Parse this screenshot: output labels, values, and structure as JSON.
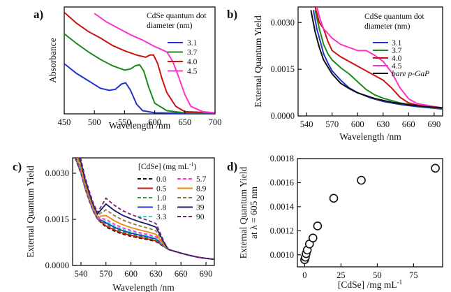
{
  "panels": [
    {
      "id": "a",
      "panel_label": "a)",
      "type": "line",
      "xlabel": "Wavelength /nm",
      "ylabel": "Absorbance",
      "xlim": [
        450,
        700
      ],
      "xticks": [
        450,
        500,
        550,
        600,
        650,
        700
      ],
      "legend_title": [
        "CdSe quantum dot",
        "diameter (nm)"
      ],
      "legend_position": "top-right",
      "series": [
        {
          "name": "3.1",
          "color": "#2233cc",
          "x": [
            450,
            470,
            490,
            510,
            525,
            535,
            545,
            552,
            560,
            570,
            580,
            600,
            650,
            700
          ],
          "y": [
            0.47,
            0.38,
            0.31,
            0.24,
            0.22,
            0.23,
            0.28,
            0.29,
            0.22,
            0.09,
            0.03,
            0.01,
            0.005,
            0.005
          ]
        },
        {
          "name": "3.7",
          "color": "#1e8a1e",
          "x": [
            450,
            470,
            490,
            510,
            530,
            550,
            560,
            568,
            575,
            582,
            590,
            600,
            620,
            650,
            700
          ],
          "y": [
            0.75,
            0.66,
            0.58,
            0.51,
            0.45,
            0.41,
            0.42,
            0.45,
            0.46,
            0.4,
            0.25,
            0.1,
            0.03,
            0.01,
            0.01
          ]
        },
        {
          "name": "4.0",
          "color": "#cc1111",
          "x": [
            450,
            470,
            490,
            510,
            530,
            550,
            570,
            585,
            592,
            598,
            605,
            612,
            620,
            635,
            650,
            700
          ],
          "y": [
            0.95,
            0.85,
            0.77,
            0.71,
            0.64,
            0.59,
            0.55,
            0.53,
            0.55,
            0.55,
            0.47,
            0.33,
            0.2,
            0.07,
            0.02,
            0.01
          ]
        },
        {
          "name": "4.5",
          "color": "#ff33cc",
          "x": [
            500,
            520,
            540,
            560,
            580,
            600,
            612,
            620,
            630,
            640,
            650,
            660,
            680,
            700
          ],
          "y": [
            0.94,
            0.86,
            0.8,
            0.74,
            0.69,
            0.63,
            0.6,
            0.58,
            0.49,
            0.34,
            0.18,
            0.07,
            0.02,
            0.01
          ]
        }
      ]
    },
    {
      "id": "b",
      "panel_label": "b)",
      "type": "line",
      "xlabel": "Wavelength /nm",
      "ylabel": "External Quantum Yield",
      "xlim": [
        530,
        700
      ],
      "ylim": [
        0,
        0.0035
      ],
      "xticks": [
        540,
        570,
        600,
        630,
        660,
        690
      ],
      "yticks": [
        0.0,
        0.0015,
        0.003
      ],
      "ytick_labels": [
        "0.0000",
        "0.0015",
        "0.0030"
      ],
      "legend_title": [
        "CdSe quantum dot",
        "diameter (nm)"
      ],
      "legend_position": "top-right",
      "series": [
        {
          "name": "3.1",
          "color": "#2233cc",
          "x": [
            548,
            552,
            556,
            560,
            565,
            570,
            580,
            590,
            600,
            615,
            630,
            650,
            670,
            690,
            700
          ],
          "y": [
            0.0034,
            0.0028,
            0.0024,
            0.002,
            0.0017,
            0.00145,
            0.00115,
            0.0009,
            0.00075,
            0.00058,
            0.00047,
            0.00037,
            0.0003,
            0.00025,
            0.00022
          ]
        },
        {
          "name": "3.7",
          "color": "#1e8a1e",
          "x": [
            550,
            555,
            560,
            565,
            570,
            580,
            590,
            600,
            610,
            620,
            630,
            650,
            670,
            690,
            700
          ],
          "y": [
            0.0034,
            0.0028,
            0.0023,
            0.002,
            0.0018,
            0.00155,
            0.00135,
            0.0011,
            0.00085,
            0.00068,
            0.00057,
            0.00042,
            0.00033,
            0.00026,
            0.00023
          ]
        },
        {
          "name": "4.0",
          "color": "#cc1111",
          "x": [
            550,
            555,
            560,
            565,
            570,
            580,
            590,
            600,
            610,
            620,
            630,
            640,
            650,
            660,
            670,
            690,
            700
          ],
          "y": [
            0.0035,
            0.003,
            0.0028,
            0.0024,
            0.0021,
            0.0019,
            0.00175,
            0.0016,
            0.00145,
            0.0013,
            0.00115,
            0.0009,
            0.0006,
            0.00042,
            0.00035,
            0.00027,
            0.00024
          ]
        },
        {
          "name": "4.5",
          "color": "#ff33cc",
          "x": [
            552,
            556,
            560,
            570,
            580,
            590,
            600,
            610,
            620,
            630,
            640,
            650,
            660,
            670,
            690,
            700
          ],
          "y": [
            0.0035,
            0.0031,
            0.0028,
            0.0025,
            0.0023,
            0.0022,
            0.0021,
            0.0021,
            0.00195,
            0.00175,
            0.0014,
            0.0009,
            0.00055,
            0.0004,
            0.0003,
            0.00026
          ]
        },
        {
          "name": "bare p-GaP",
          "name_style": "italic",
          "color": "#111111",
          "x": [
            545,
            550,
            555,
            560,
            570,
            580,
            590,
            600,
            620,
            640,
            660,
            680,
            700
          ],
          "y": [
            0.0034,
            0.0027,
            0.0022,
            0.0018,
            0.00135,
            0.00105,
            0.00088,
            0.00074,
            0.00056,
            0.00044,
            0.00036,
            0.0003,
            0.00026
          ]
        }
      ]
    },
    {
      "id": "c",
      "panel_label": "c)",
      "type": "line",
      "xlabel": "Wavelength /nm",
      "ylabel": "External Quantum Yield",
      "xlim": [
        530,
        700
      ],
      "ylim": [
        0,
        0.0035
      ],
      "xticks": [
        540,
        570,
        600,
        630,
        660,
        690
      ],
      "yticks": [
        0.0,
        0.0015,
        0.003
      ],
      "ytick_labels": [
        "0.0000",
        "0.0015",
        "0.0030"
      ],
      "legend_title": [
        "[CdSe] (mg mL",
        "-1",
        ")"
      ],
      "legend_position": "top-right",
      "series": [
        {
          "name": "0.0",
          "color": "#111111",
          "dash": "5,3",
          "y_mult": 1.0
        },
        {
          "name": "0.5",
          "color": "#dd1111",
          "dash": "",
          "y_mult": 1.03
        },
        {
          "name": "1.0",
          "color": "#22aa22",
          "dash": "5,3",
          "y_mult": 1.07
        },
        {
          "name": "1.8",
          "color": "#2233cc",
          "dash": "",
          "y_mult": 1.11
        },
        {
          "name": "3.3",
          "color": "#22dddd",
          "dash": "5,3",
          "y_mult": 1.15
        },
        {
          "name": "5.7",
          "color": "#ff33cc",
          "dash": "5,3",
          "y_mult": 1.2
        },
        {
          "name": "8.9",
          "color": "#ee8800",
          "dash": "",
          "y_mult": 1.3
        },
        {
          "name": "20",
          "color": "#887744",
          "dash": "5,3",
          "y_mult": 1.45
        },
        {
          "name": "39",
          "color": "#1a1a66",
          "dash": "",
          "y_mult": 1.6
        },
        {
          "name": "90",
          "color": "#772277",
          "dash": "5,3",
          "y_mult": 1.75
        }
      ],
      "base_curve": {
        "x": [
          533,
          540,
          545,
          550,
          555,
          560,
          570,
          580,
          590,
          600,
          610,
          620,
          630,
          640,
          645,
          650,
          660,
          670,
          680,
          690,
          700
        ],
        "y": [
          0.0035,
          0.003,
          0.0025,
          0.0021,
          0.00175,
          0.0015,
          0.00125,
          0.00112,
          0.00102,
          0.00095,
          0.00089,
          0.00084,
          0.00078,
          0.0006,
          0.00052,
          0.00048,
          0.0004,
          0.00033,
          0.00027,
          0.00023,
          0.0002
        ]
      }
    },
    {
      "id": "d",
      "panel_label": "d)",
      "type": "scatter",
      "xlabel": "[CdSe] /mg mL",
      "xlabel_sup": "-1",
      "ylabel_line1": "External Quantum Yield",
      "ylabel_line2": "at λ = 605 nm",
      "xlim": [
        -5,
        95
      ],
      "ylim": [
        0.0009,
        0.0018
      ],
      "xticks": [
        0,
        25,
        50,
        75
      ],
      "yticks": [
        0.001,
        0.0012,
        0.0014,
        0.0016,
        0.0018
      ],
      "ytick_labels": [
        "0.0010",
        "0.0012",
        "0.0014",
        "0.0016",
        "0.0018"
      ],
      "points": [
        {
          "x": 0.0,
          "y": 0.00096
        },
        {
          "x": 0.5,
          "y": 0.00098
        },
        {
          "x": 1.0,
          "y": 0.00101
        },
        {
          "x": 1.8,
          "y": 0.00104
        },
        {
          "x": 3.3,
          "y": 0.00109
        },
        {
          "x": 5.7,
          "y": 0.00114
        },
        {
          "x": 8.9,
          "y": 0.00124
        },
        {
          "x": 20,
          "y": 0.00147
        },
        {
          "x": 39,
          "y": 0.00162
        },
        {
          "x": 90,
          "y": 0.00172
        }
      ]
    }
  ],
  "chart_data": [
    {
      "type": "line",
      "panel": "a",
      "xlabel": "Wavelength /nm",
      "ylabel": "Absorbance",
      "x_range": [
        450,
        700
      ],
      "series_names": [
        "3.1",
        "3.7",
        "4.0",
        "4.5"
      ]
    },
    {
      "type": "line",
      "panel": "b",
      "xlabel": "Wavelength /nm",
      "ylabel": "External Quantum Yield",
      "x_range": [
        530,
        700
      ],
      "y_range": [
        0,
        0.0035
      ],
      "series_names": [
        "3.1",
        "3.7",
        "4.0",
        "4.5",
        "bare p-GaP"
      ]
    },
    {
      "type": "line",
      "panel": "c",
      "xlabel": "Wavelength /nm",
      "ylabel": "External Quantum Yield",
      "x_range": [
        530,
        700
      ],
      "y_range": [
        0,
        0.0035
      ],
      "series_names": [
        "0.0",
        "0.5",
        "1.0",
        "1.8",
        "3.3",
        "5.7",
        "8.9",
        "20",
        "39",
        "90"
      ]
    },
    {
      "type": "scatter",
      "panel": "d",
      "xlabel": "[CdSe] /mg mL-1",
      "ylabel": "External Quantum Yield at λ = 605 nm",
      "x": [
        0.0,
        0.5,
        1.0,
        1.8,
        3.3,
        5.7,
        8.9,
        20,
        39,
        90
      ],
      "y": [
        0.00096,
        0.00098,
        0.00101,
        0.00104,
        0.00109,
        0.00114,
        0.00124,
        0.00147,
        0.00162,
        0.00172
      ]
    }
  ]
}
